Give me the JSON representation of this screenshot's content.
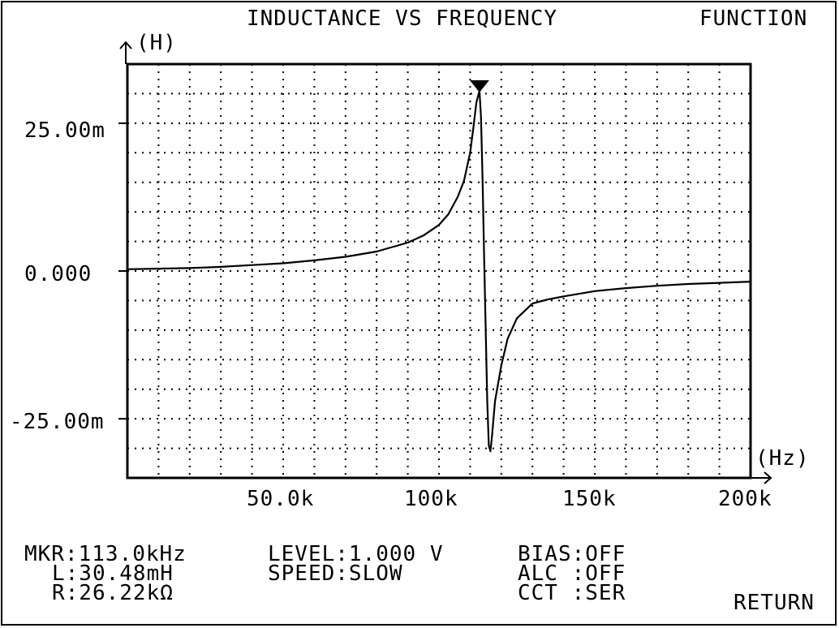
{
  "header": {
    "title": "INDUCTANCE VS FREQUENCY",
    "menu": "FUNCTION"
  },
  "chart_data": {
    "type": "line",
    "title": "INDUCTANCE VS FREQUENCY",
    "ylabel": "(H)",
    "xlabel": "(Hz)",
    "xlim": [
      0,
      200000
    ],
    "ylim": [
      -35,
      35
    ],
    "y_unit_note": "values in mH",
    "grid": true,
    "y_ticks": [
      {
        "value": 25,
        "label": "25.00m"
      },
      {
        "value": 0,
        "label": "0.000"
      },
      {
        "value": -25,
        "label": "-25.00m"
      }
    ],
    "x_ticks": [
      {
        "value": 50000,
        "label": "50.0k"
      },
      {
        "value": 100000,
        "label": "100k"
      },
      {
        "value": 150000,
        "label": "150k"
      },
      {
        "value": 200000,
        "label": "200k"
      }
    ],
    "series": [
      {
        "x": [
          0,
          10000,
          20000,
          30000,
          40000,
          50000,
          60000,
          70000,
          80000,
          90000,
          95000,
          100000,
          103000,
          106000,
          108000,
          110000,
          111000,
          112000,
          113000,
          113500,
          114000,
          114500,
          115000,
          115500,
          116000,
          116500,
          117000,
          118000,
          120000,
          122000,
          125000,
          130000,
          135000,
          140000,
          150000,
          160000,
          170000,
          180000,
          190000,
          200000
        ],
        "y": [
          0.3,
          0.4,
          0.5,
          0.7,
          1.0,
          1.3,
          1.8,
          2.4,
          3.3,
          4.8,
          6.0,
          7.8,
          9.6,
          12.5,
          15.2,
          20.0,
          24.0,
          28.5,
          30.48,
          26.0,
          15.0,
          2.0,
          -10.0,
          -22.0,
          -29.5,
          -30.5,
          -28.0,
          -22.0,
          -16.0,
          -11.5,
          -8.0,
          -5.5,
          -4.8,
          -4.3,
          -3.4,
          -2.9,
          -2.5,
          -2.2,
          -2.0,
          -1.8
        ]
      }
    ],
    "marker": {
      "x": 113000,
      "y": 30.48
    }
  },
  "readout": {
    "mkr": "MKR:113.0kHz",
    "l": "L:30.48mH",
    "r": "R:26.22kΩ",
    "level": "LEVEL:1.000 V",
    "speed": "SPEED:SLOW",
    "bias": "BIAS:OFF",
    "alc": "ALC :OFF",
    "cct": "CCT :SER"
  },
  "softkeys": {
    "return": "RETURN"
  }
}
